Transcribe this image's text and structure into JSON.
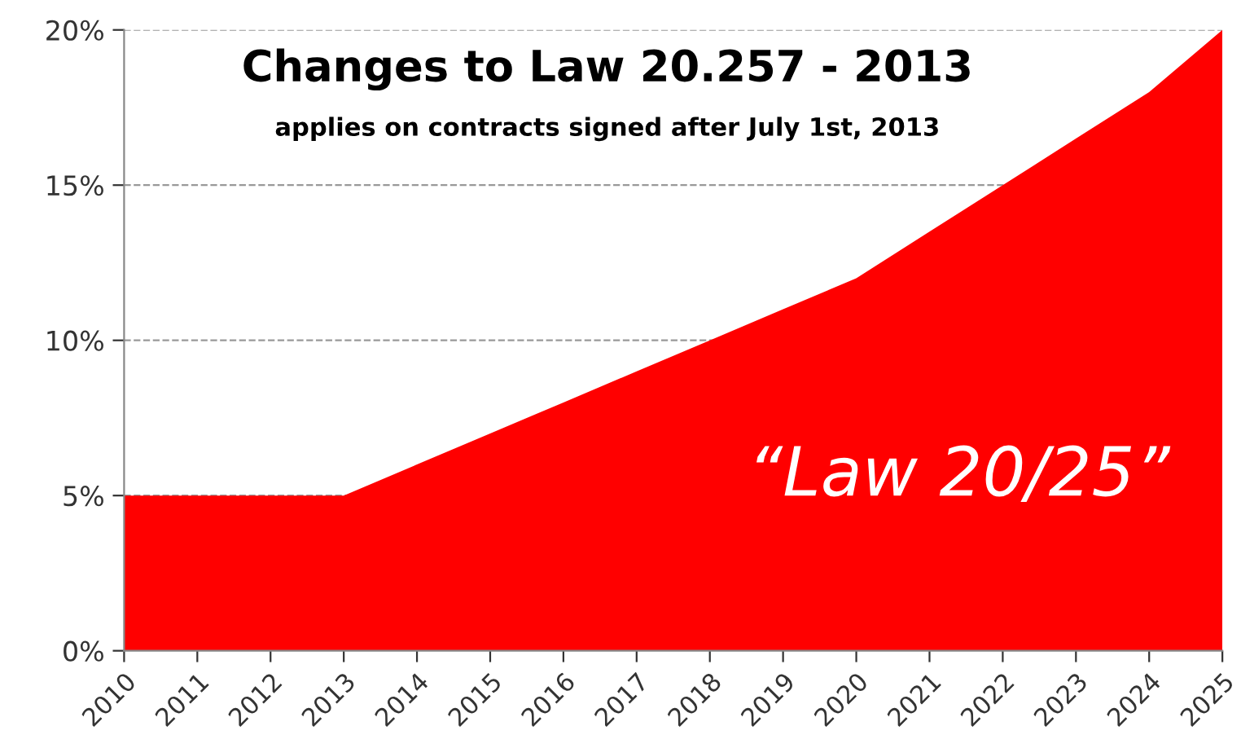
{
  "chart_data": {
    "type": "area",
    "title": "Changes to Law 20.257 - 2013",
    "subtitle": "applies on contracts signed after July 1st, 2013",
    "annotations": [
      "“Law 20/25”"
    ],
    "categories": [
      "2010",
      "2011",
      "2012",
      "2013",
      "2014",
      "2015",
      "2016",
      "2017",
      "2018",
      "2019",
      "2020",
      "2021",
      "2022",
      "2023",
      "2024",
      "2025"
    ],
    "series": [
      {
        "color": "#ff0000",
        "values": [
          5,
          5,
          5,
          5,
          6,
          7,
          8,
          9,
          10,
          11,
          12,
          13.5,
          15,
          16.5,
          18,
          20
        ]
      }
    ],
    "ylim": [
      0,
      20
    ],
    "yticks": [
      {
        "value": 0,
        "label": "0%"
      },
      {
        "value": 5,
        "label": "5%"
      },
      {
        "value": 10,
        "label": "10%"
      },
      {
        "value": 15,
        "label": "15%"
      },
      {
        "value": 20,
        "label": "20%"
      }
    ],
    "grid": "y"
  }
}
